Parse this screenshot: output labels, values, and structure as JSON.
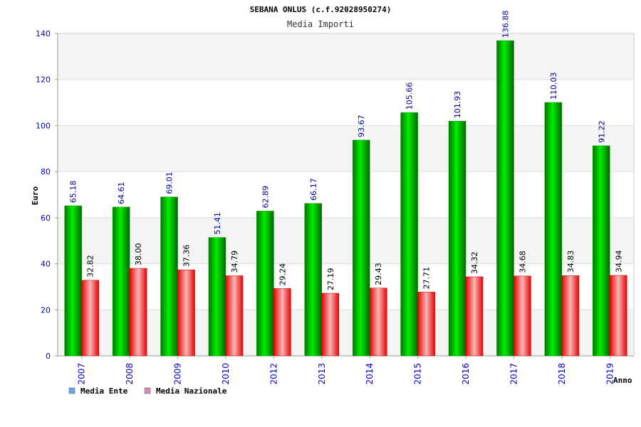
{
  "chart_data": {
    "type": "bar",
    "title": "SEBANA ONLUS (c.f.92028950274)",
    "subtitle": "Media Importi",
    "xlabel": "Anno",
    "ylabel": "Euro",
    "ylim": [
      0,
      140
    ],
    "yticks": [
      0,
      20,
      40,
      60,
      80,
      100,
      120,
      140
    ],
    "categories": [
      "2007",
      "2008",
      "2009",
      "2010",
      "2012",
      "2013",
      "2014",
      "2015",
      "2016",
      "2017",
      "2018",
      "2019"
    ],
    "series": [
      {
        "name": "Media Ente",
        "color": "#00cc00",
        "values": [
          65.18,
          64.61,
          69.01,
          51.41,
          62.89,
          66.17,
          93.67,
          105.66,
          101.93,
          136.88,
          110.03,
          91.22
        ],
        "labels": [
          "65.18",
          "64.61",
          "69.01",
          "51.41",
          "62.89",
          "66.17",
          "93.67",
          "105.66",
          "101.93",
          "136.88",
          "110.03",
          "91.22"
        ]
      },
      {
        "name": "Media Nazionale",
        "color": "#ee1111",
        "values": [
          32.82,
          38.0,
          37.36,
          34.79,
          29.24,
          27.19,
          29.43,
          27.71,
          34.32,
          34.68,
          34.83,
          34.94
        ],
        "labels": [
          "32.82",
          "38.00",
          "37.36",
          "34.79",
          "29.24",
          "27.19",
          "29.43",
          "27.71",
          "34.32",
          "34.68",
          "34.83",
          "34.94"
        ]
      }
    ],
    "legend": [
      {
        "name": "Media Ente",
        "color": "#66aaee"
      },
      {
        "name": "Media Nazionale",
        "color": "#dd88bb"
      }
    ],
    "legend_position": "bottom-left",
    "grid": true,
    "band_color": "#f4f4f4"
  }
}
